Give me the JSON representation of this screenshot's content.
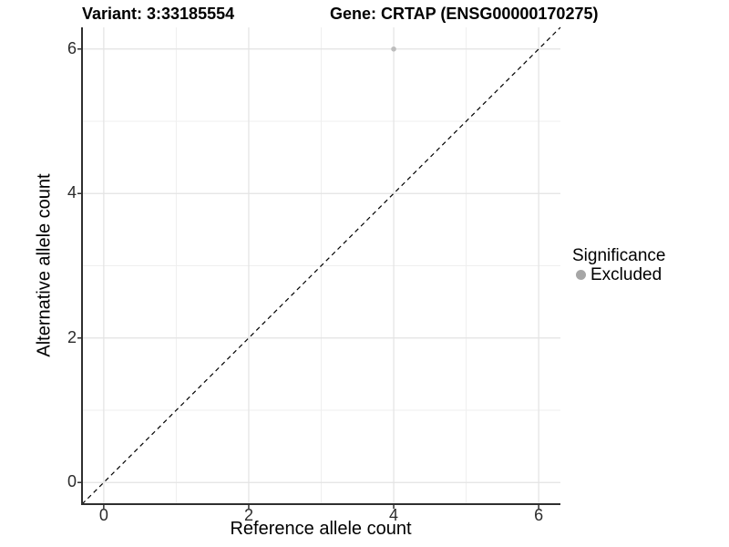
{
  "titles": {
    "variant": "Variant: 3:33185554",
    "gene": "Gene: CRTAP (ENSG00000170275)"
  },
  "legend": {
    "title": "Significance",
    "items": [
      {
        "label": "Excluded",
        "color": "#a6a6a6"
      }
    ]
  },
  "chart_data": {
    "type": "scatter",
    "title_left": "Variant: 3:33185554",
    "title_right": "Gene: CRTAP (ENSG00000170275)",
    "xlabel": "Reference allele count",
    "ylabel": "Alternative allele count",
    "xlim": [
      -0.3,
      6.3
    ],
    "ylim": [
      -0.3,
      6.3
    ],
    "x_ticks": {
      "values": [
        0,
        2,
        4,
        6
      ],
      "labels": [
        "0",
        "2",
        "4",
        "6"
      ],
      "minor": [
        1,
        3,
        5
      ]
    },
    "y_ticks": {
      "values": [
        0,
        2,
        4,
        6
      ],
      "labels": [
        "0",
        "2",
        "4",
        "6"
      ],
      "minor": [
        1,
        3,
        5
      ]
    },
    "grid": true,
    "legend_position": "right",
    "series": [
      {
        "name": "Excluded",
        "color": "#bdbdbd",
        "point_radius": 2.8,
        "points": [
          {
            "x": 4,
            "y": 6
          }
        ]
      }
    ],
    "reference_line": {
      "type": "abline",
      "slope": 1,
      "intercept": 0,
      "style": "dashed",
      "color": "#000000"
    },
    "style": {
      "grid_major_color": "#e3e3e3",
      "grid_minor_color": "#efefef",
      "axis_line_color": "#2f2f2f",
      "tick_color": "#2f2f2f",
      "background": "#ffffff"
    }
  }
}
